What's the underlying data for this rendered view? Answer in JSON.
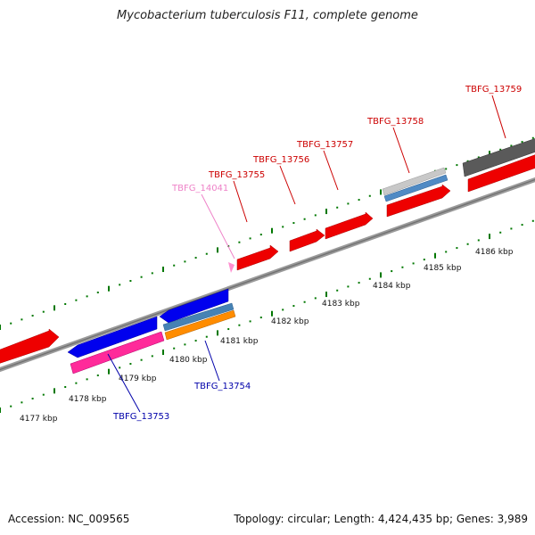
{
  "title": "Mycobacterium tuberculosis F11, complete genome",
  "footer": {
    "accession": "Accession: NC_009565",
    "summary": "Topology: circular; Length: 4,424,435 bp; Genes: 3,989"
  },
  "colors": {
    "forward_cds": "#ff0000",
    "reverse_cds": "#0000ee",
    "pink_feature": "#ff2a9a",
    "orange_feature": "#ff8c00",
    "steel_feature": "#4682b4",
    "grey_feature": "#c8c8c8",
    "dark_feature": "#555555",
    "backbone": "#8c8c8c",
    "tick": "#007700",
    "forward_label": "#cc0000",
    "reverse_label": "#0000aa",
    "pseudo_label": "#ee82c8"
  },
  "scale_ticks": [
    {
      "label": "4177 kbp"
    },
    {
      "label": "4178 kbp"
    },
    {
      "label": "4179 kbp"
    },
    {
      "label": "4180 kbp"
    },
    {
      "label": "4181 kbp"
    },
    {
      "label": "4182 kbp"
    },
    {
      "label": "4183 kbp"
    },
    {
      "label": "4184 kbp"
    },
    {
      "label": "4185 kbp"
    },
    {
      "label": "4186 kbp"
    }
  ],
  "gene_labels": [
    {
      "id": "TBFG_14041",
      "strand": "forward",
      "kind": "pseudo"
    },
    {
      "id": "TBFG_13755",
      "strand": "forward"
    },
    {
      "id": "TBFG_13756",
      "strand": "forward"
    },
    {
      "id": "TBFG_13757",
      "strand": "forward"
    },
    {
      "id": "TBFG_13758",
      "strand": "forward"
    },
    {
      "id": "TBFG_13759",
      "strand": "forward"
    },
    {
      "id": "TBFG_13753",
      "strand": "reverse"
    },
    {
      "id": "TBFG_13754",
      "strand": "reverse"
    }
  ]
}
